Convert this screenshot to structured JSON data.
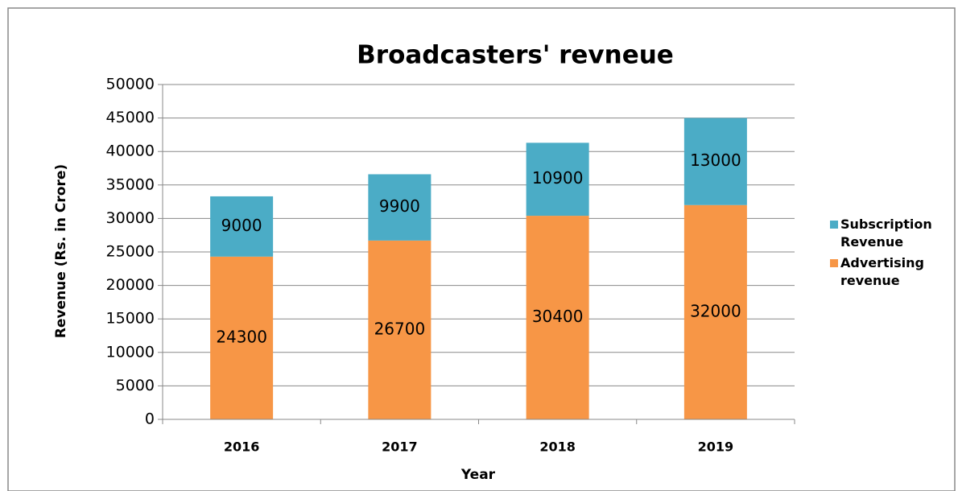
{
  "chart_data": {
    "type": "stacked_bar",
    "title": "Broadcasters' revneue",
    "x_label": "Year",
    "y_label": "Revenue (Rs. in Crore)",
    "categories": [
      "2016",
      "2017",
      "2018",
      "2019"
    ],
    "series": [
      {
        "name": "Advertising revenue",
        "color": "#f79646",
        "values": [
          24300,
          26700,
          30400,
          32000
        ]
      },
      {
        "name": "Subscription Revenue",
        "color": "#4bacc6",
        "values": [
          9000,
          9900,
          10900,
          13000
        ]
      }
    ],
    "ylim": [
      0,
      50000
    ],
    "yticks": [
      0,
      5000,
      10000,
      15000,
      20000,
      25000,
      30000,
      35000,
      40000,
      45000,
      50000
    ],
    "grid": true,
    "legend": "right"
  }
}
